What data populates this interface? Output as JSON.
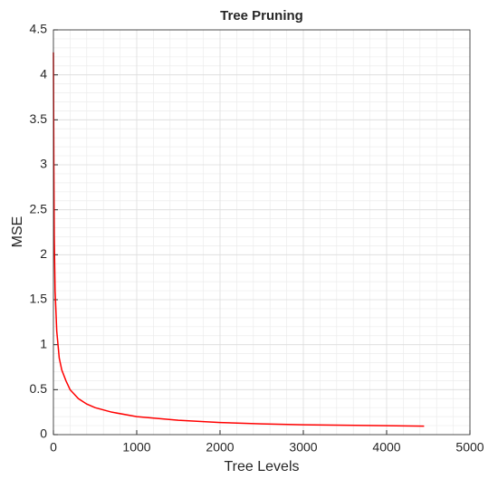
{
  "chart_data": {
    "type": "line",
    "title": "Tree Pruning",
    "x_label": "Tree Levels",
    "y_label": "MSE",
    "x": [
      0,
      5,
      10,
      20,
      40,
      70,
      100,
      150,
      200,
      300,
      400,
      500,
      700,
      1000,
      1500,
      2000,
      2500,
      3000,
      3500,
      4000,
      4450
    ],
    "series": [
      {
        "name": "MSE",
        "color": "#ff0000",
        "values": [
          4.25,
          3.0,
          2.2,
          1.6,
          1.15,
          0.85,
          0.72,
          0.6,
          0.5,
          0.4,
          0.34,
          0.3,
          0.25,
          0.2,
          0.16,
          0.135,
          0.12,
          0.11,
          0.105,
          0.1,
          0.095
        ]
      }
    ],
    "xlim": [
      0,
      5000
    ],
    "xticks": [
      0,
      1000,
      2000,
      3000,
      4000,
      5000
    ],
    "ylim": [
      0,
      4.5
    ],
    "yticks": [
      0,
      0.5,
      1,
      1.5,
      2,
      2.5,
      3,
      3.5,
      4,
      4.5
    ],
    "grid": true,
    "minor_grid": true
  }
}
